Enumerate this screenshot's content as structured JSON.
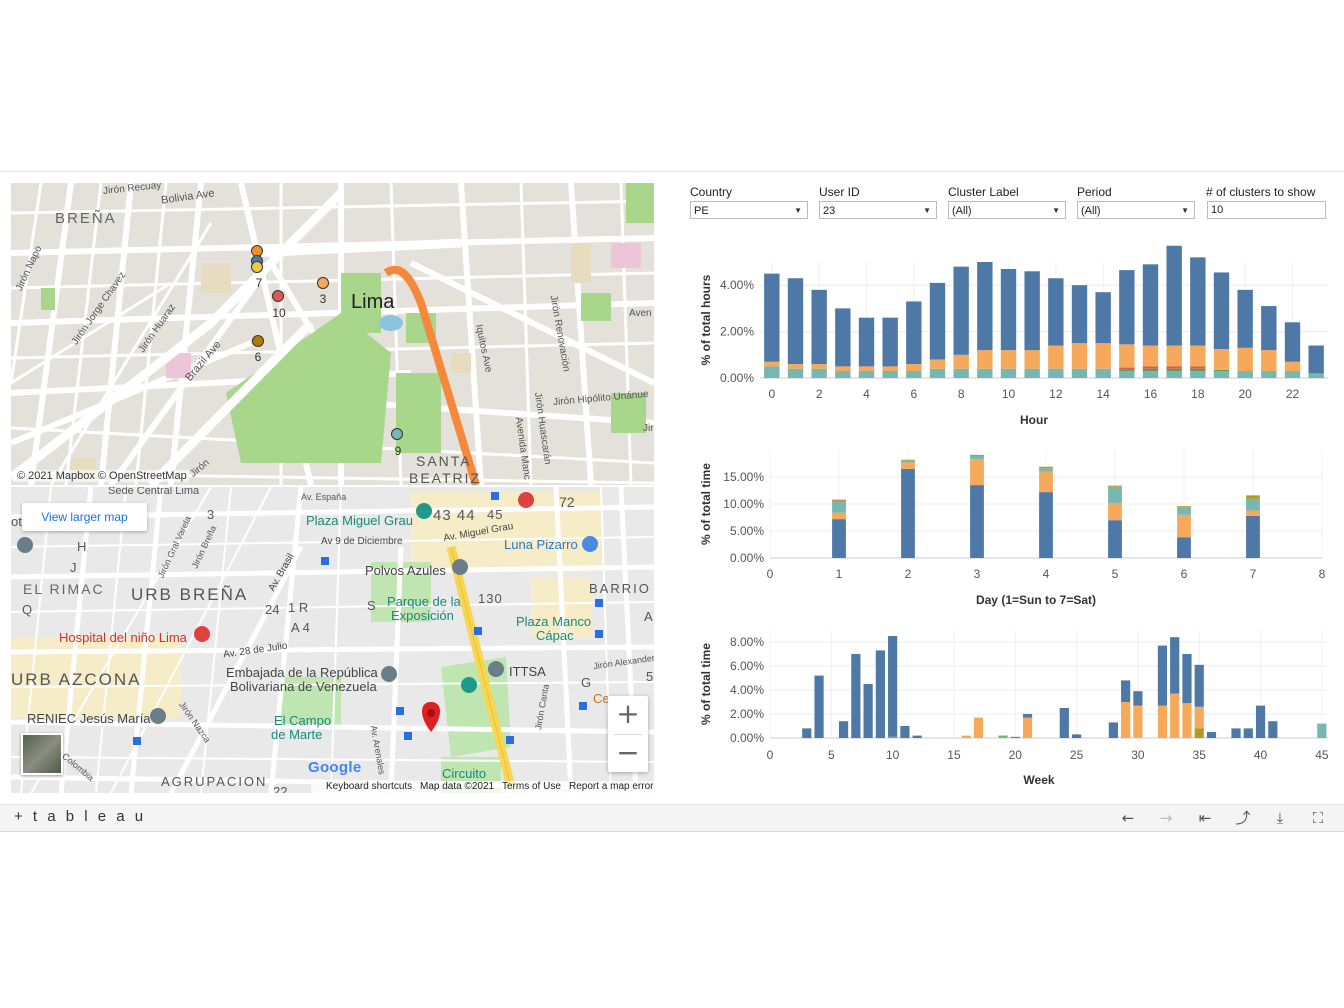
{
  "map_top": {
    "labels": {
      "brena": "BREÑA",
      "lima": "Lima",
      "bolivia": "Bolivia Ave",
      "recuay": "Jirón Recuay",
      "napo": "Jirón Napo",
      "chavez": "Jirón Jorge Chavez",
      "huaraz": "Jirón Huaraz",
      "brazil": "Brazil Ave",
      "iquitos": "Iquitos Ave",
      "renovacion": "Jirón Renovación",
      "huascaran": "Jirón Huascarán",
      "manco": "Avenida Manc",
      "hipolito": "Jirón Hipólito Unánue",
      "aven": "Aven",
      "santa": "SANTA",
      "beatriz": "BEATRIZ",
      "jiron_bottom": "Jirón",
      "jir_right": "Jir"
    },
    "attribution": "© 2021 Mapbox © OpenStreetMap",
    "clusters": [
      {
        "label": "7",
        "color": "#f28e2b"
      },
      {
        "label": "",
        "color": "#4e79a7"
      },
      {
        "label": "",
        "color": "#edc948"
      },
      {
        "label": "3",
        "color": "#f6a95a"
      },
      {
        "label": "10",
        "color": "#e15759"
      },
      {
        "label": "6",
        "color": "#b07a00"
      },
      {
        "label": "9",
        "color": "#76b7b2"
      }
    ]
  },
  "map_bottom": {
    "view_larger": "View larger map",
    "labels": {
      "sede": "Sede Central Lima",
      "plaza_grau": "Plaza Miguel Grau",
      "av_espana": "Av. España",
      "av_diciembre": "Av 9 de Diciembre",
      "av_grau": "Av. Miguel Grau",
      "luna": "Luna Pizarro",
      "polvos": "Polvos Azules",
      "parque": "Parque de la",
      "exposicion": "Exposición",
      "barrio": "BARRIO",
      "plaza_manco": "Plaza Manco",
      "capac": "Cápac",
      "rimac": "EL RIMAC",
      "urb_brena": "URB BREÑA",
      "hospital": "Hospital del niño Lima",
      "av_julio": "Av. 28 de Julio",
      "embajada1": "Embajada de la República",
      "embajada2": "Bolivariana de Venezuela",
      "ittsa": "ITTSA",
      "urb_azcona": "URB AZCONA",
      "reniec": "RENIEC Jesús María",
      "campo1": "El Campo",
      "campo2": "de Marte",
      "circuito": "Circuito",
      "agrupacion": "AGRUPACION",
      "av_brasil": "Av. Brasil",
      "jr_alexander": "Jirón Alexander",
      "n72": "72",
      "n130": "130",
      "n4344": "43 44",
      "n45": "45",
      "n3": "3",
      "n24": "24",
      "n1r": "1 R",
      "na4": "A 4",
      "nH": "H",
      "nJ": "J",
      "nQ": "Q",
      "nS": "S",
      "nG": "G",
      "nA": "A",
      "n5": "5",
      "n22": "22",
      "ote": "ote",
      "ce": "Ce",
      "colombia": "Colombia",
      "arenales": "Av. Arenales",
      "jiron_canta": "Jirón Canta",
      "gral_varela": "Jirón Gral Varela",
      "jr_brena": "Jirón Breña",
      "jr_nazca": "Jirón Nazca"
    },
    "google": "Google",
    "attribution": [
      "Keyboard shortcuts",
      "Map data ©2021",
      "Terms of Use",
      "Report a map error"
    ]
  },
  "filters": [
    {
      "label": "Country",
      "value": "PE"
    },
    {
      "label": "User ID",
      "value": "23"
    },
    {
      "label": "Cluster Label",
      "value": "(All)"
    },
    {
      "label": "Period",
      "value": "(All)"
    }
  ],
  "clusters_filter": {
    "label": "# of clusters to show",
    "value": "10"
  },
  "colors": {
    "blue": "#4e79a7",
    "orange": "#f6a95a",
    "teal": "#76b7b2",
    "green": "#59a14f",
    "red": "#e15759",
    "olive": "#b49a1d",
    "brown": "#9c755f"
  },
  "chart_data": [
    {
      "type": "bar",
      "stacked": true,
      "xlabel": "Hour",
      "ylabel": "% of total hours",
      "x_ticks": [
        "0",
        "2",
        "4",
        "6",
        "8",
        "10",
        "12",
        "14",
        "16",
        "18",
        "20",
        "22"
      ],
      "y_ticks": [
        "0.00%",
        "2.00%",
        "4.00%"
      ],
      "categories": [
        0,
        1,
        2,
        3,
        4,
        5,
        6,
        7,
        8,
        9,
        10,
        11,
        12,
        13,
        14,
        15,
        16,
        17,
        18,
        19,
        20,
        21,
        22,
        23
      ],
      "series": [
        {
          "color": "#76b7b2",
          "values": [
            0.5,
            0.4,
            0.4,
            0.3,
            0.3,
            0.3,
            0.3,
            0.4,
            0.4,
            0.4,
            0.4,
            0.4,
            0.4,
            0.4,
            0.4,
            0.3,
            0.3,
            0.3,
            0.3,
            0.3,
            0.3,
            0.3,
            0.3,
            0.2
          ]
        },
        {
          "color": "#59a14f",
          "values": [
            0,
            0,
            0,
            0,
            0,
            0,
            0,
            0,
            0,
            0,
            0,
            0,
            0,
            0,
            0,
            0.05,
            0.1,
            0.1,
            0.1,
            0.05,
            0,
            0,
            0,
            0
          ]
        },
        {
          "color": "#e15759",
          "values": [
            0,
            0,
            0,
            0,
            0,
            0,
            0,
            0,
            0,
            0,
            0,
            0,
            0,
            0,
            0,
            0.1,
            0.1,
            0.1,
            0.1,
            0,
            0,
            0,
            0,
            0
          ]
        },
        {
          "color": "#f6a95a",
          "values": [
            0.2,
            0.2,
            0.2,
            0.2,
            0.2,
            0.2,
            0.3,
            0.4,
            0.6,
            0.8,
            0.8,
            0.8,
            1.0,
            1.1,
            1.1,
            1.0,
            0.9,
            0.9,
            0.9,
            0.9,
            1.0,
            0.9,
            0.4,
            0
          ]
        },
        {
          "color": "#4e79a7",
          "values": [
            3.8,
            3.7,
            3.2,
            2.5,
            2.1,
            2.1,
            2.7,
            3.3,
            3.8,
            3.8,
            3.5,
            3.4,
            2.9,
            2.5,
            2.2,
            3.2,
            3.5,
            4.3,
            3.8,
            3.3,
            2.5,
            1.9,
            1.7,
            1.2
          ]
        }
      ],
      "ylim": [
        0,
        5
      ]
    },
    {
      "type": "bar",
      "stacked": true,
      "xlabel": "Day (1=Sun to 7=Sat)",
      "ylabel": "% of total time",
      "x_ticks": [
        "0",
        "1",
        "2",
        "3",
        "4",
        "5",
        "6",
        "7",
        "8"
      ],
      "y_ticks": [
        "0.00%",
        "5.00%",
        "10.00%",
        "15.00%"
      ],
      "categories": [
        1,
        2,
        3,
        4,
        5,
        6,
        7
      ],
      "series": [
        {
          "color": "#4e79a7",
          "values": [
            7.2,
            16.5,
            13.5,
            12.2,
            7.0,
            3.8,
            7.8
          ]
        },
        {
          "color": "#f6a95a",
          "values": [
            1.2,
            1.2,
            4.8,
            3.8,
            3.2,
            4.2,
            1.0
          ]
        },
        {
          "color": "#76b7b2",
          "values": [
            2.0,
            0.4,
            0.6,
            0.6,
            3.0,
            1.4,
            2.2
          ]
        },
        {
          "color": "#b49a1d",
          "values": [
            0.3,
            0.1,
            0.2,
            0.3,
            0.2,
            0.2,
            0.6
          ]
        },
        {
          "color": "#e15759",
          "values": [
            0.1,
            0,
            0,
            0,
            0,
            0,
            0
          ]
        }
      ],
      "ylim": [
        0,
        20
      ]
    },
    {
      "type": "bar",
      "stacked": true,
      "xlabel": "Week",
      "ylabel": "% of total time",
      "x_ticks": [
        "0",
        "5",
        "10",
        "15",
        "20",
        "25",
        "30",
        "35",
        "40",
        "45"
      ],
      "y_ticks": [
        "0.00%",
        "2.00%",
        "4.00%",
        "6.00%",
        "8.00%"
      ],
      "categories": [
        3,
        4,
        6,
        7,
        8,
        9,
        10,
        11,
        12,
        16,
        17,
        19,
        20,
        21,
        24,
        25,
        28,
        29,
        30,
        32,
        33,
        34,
        35,
        36,
        38,
        39,
        40,
        41,
        45
      ],
      "series": [
        {
          "color": "#76b7b2",
          "values": [
            0,
            0,
            0,
            0,
            0,
            0,
            0,
            0,
            0,
            0,
            0,
            0.1,
            0,
            0,
            0,
            0,
            0,
            0,
            0,
            0,
            0,
            0,
            0,
            0,
            0,
            0,
            0,
            0,
            1.2
          ]
        },
        {
          "color": "#59a14f",
          "values": [
            0,
            0,
            0,
            0,
            0,
            0,
            0,
            0,
            0,
            0,
            0,
            0.1,
            0.1,
            0,
            0,
            0,
            0,
            0,
            0,
            0,
            0,
            0,
            0,
            0,
            0,
            0,
            0,
            0,
            0
          ]
        },
        {
          "color": "#b49a1d",
          "values": [
            0,
            0,
            0,
            0,
            0,
            0,
            0.1,
            0,
            0,
            0,
            0,
            0,
            0,
            0,
            0,
            0,
            0,
            0,
            0,
            0,
            0,
            0,
            0.8,
            0,
            0,
            0,
            0,
            0,
            0
          ]
        },
        {
          "color": "#f6a95a",
          "values": [
            0,
            0,
            0,
            0,
            0,
            0,
            0,
            0,
            0,
            0.2,
            1.7,
            0,
            0,
            1.7,
            0,
            0,
            0,
            3.0,
            2.7,
            2.7,
            3.7,
            2.9,
            1.8,
            0,
            0,
            0,
            0,
            0,
            0
          ]
        },
        {
          "color": "#4e79a7",
          "values": [
            0.8,
            5.2,
            1.4,
            7.0,
            4.5,
            7.3,
            8.4,
            1.0,
            0.2,
            0,
            0,
            0,
            0,
            0.3,
            2.5,
            0.3,
            1.3,
            1.8,
            1.2,
            5.0,
            4.7,
            4.1,
            3.5,
            0.5,
            0.8,
            0.8,
            2.7,
            1.4,
            0
          ]
        }
      ],
      "ylim": [
        0,
        9
      ]
    }
  ],
  "toolbar": {
    "logo": "+ t a b l e a u",
    "undo": "←",
    "redo": "→",
    "revert": "⇤",
    "share": "⤴",
    "download": "⤓",
    "fullscreen": "⛶"
  }
}
